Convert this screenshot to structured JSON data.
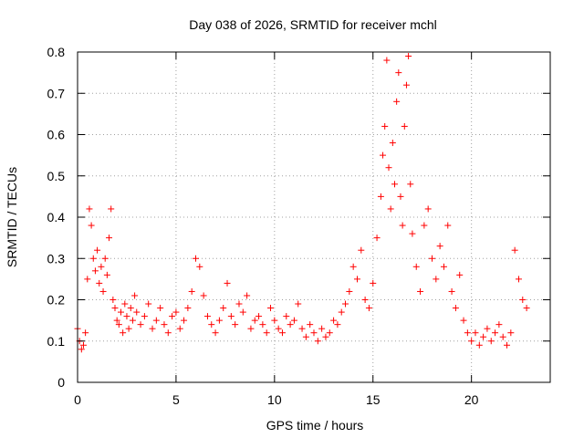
{
  "chart_data": {
    "type": "scatter",
    "title": "Day 038 of 2026, SRMTID for receiver mchl",
    "xlabel": "GPS time / hours",
    "ylabel": "SRMTID / TECUs",
    "xlim": [
      0,
      24
    ],
    "ylim": [
      0,
      0.8
    ],
    "xticks": [
      0,
      5,
      10,
      15,
      20
    ],
    "yticks": [
      0,
      0.1,
      0.2,
      0.3,
      0.4,
      0.5,
      0.6,
      0.7,
      0.8
    ],
    "grid": true,
    "marker": "+",
    "series": [
      {
        "name": "SRMTID",
        "color": "#ff0000",
        "x": [
          0.0,
          0.1,
          0.2,
          0.3,
          0.4,
          0.5,
          0.6,
          0.7,
          0.8,
          0.9,
          1.0,
          1.1,
          1.2,
          1.3,
          1.4,
          1.5,
          1.6,
          1.7,
          1.8,
          1.9,
          2.0,
          2.1,
          2.2,
          2.3,
          2.4,
          2.5,
          2.6,
          2.7,
          2.8,
          2.9,
          3.0,
          3.2,
          3.4,
          3.6,
          3.8,
          4.0,
          4.2,
          4.4,
          4.6,
          4.8,
          5.0,
          5.2,
          5.4,
          5.6,
          5.8,
          6.0,
          6.2,
          6.4,
          6.6,
          6.8,
          7.0,
          7.2,
          7.4,
          7.6,
          7.8,
          8.0,
          8.2,
          8.4,
          8.6,
          8.8,
          9.0,
          9.2,
          9.4,
          9.6,
          9.8,
          10.0,
          10.2,
          10.4,
          10.6,
          10.8,
          11.0,
          11.2,
          11.4,
          11.6,
          11.8,
          12.0,
          12.2,
          12.4,
          12.6,
          12.8,
          13.0,
          13.2,
          13.4,
          13.6,
          13.8,
          14.0,
          14.2,
          14.4,
          14.6,
          14.8,
          15.0,
          15.2,
          15.4,
          15.5,
          15.6,
          15.7,
          15.8,
          15.9,
          16.0,
          16.1,
          16.2,
          16.3,
          16.4,
          16.5,
          16.6,
          16.7,
          16.8,
          16.9,
          17.0,
          17.2,
          17.4,
          17.6,
          17.8,
          18.0,
          18.2,
          18.4,
          18.6,
          18.8,
          19.0,
          19.2,
          19.4,
          19.6,
          19.8,
          20.0,
          20.2,
          20.4,
          20.6,
          20.8,
          21.0,
          21.2,
          21.4,
          21.6,
          21.8,
          22.0,
          22.2,
          22.4,
          22.6,
          22.8
        ],
        "y": [
          0.13,
          0.1,
          0.08,
          0.09,
          0.12,
          0.25,
          0.42,
          0.38,
          0.3,
          0.27,
          0.32,
          0.24,
          0.28,
          0.22,
          0.3,
          0.26,
          0.35,
          0.42,
          0.2,
          0.18,
          0.15,
          0.14,
          0.17,
          0.12,
          0.19,
          0.16,
          0.13,
          0.18,
          0.15,
          0.21,
          0.17,
          0.14,
          0.16,
          0.19,
          0.13,
          0.15,
          0.18,
          0.14,
          0.12,
          0.16,
          0.17,
          0.13,
          0.15,
          0.18,
          0.22,
          0.3,
          0.28,
          0.21,
          0.16,
          0.14,
          0.12,
          0.15,
          0.18,
          0.24,
          0.16,
          0.14,
          0.19,
          0.17,
          0.21,
          0.13,
          0.15,
          0.16,
          0.14,
          0.12,
          0.18,
          0.15,
          0.13,
          0.12,
          0.16,
          0.14,
          0.15,
          0.19,
          0.13,
          0.11,
          0.14,
          0.12,
          0.1,
          0.13,
          0.11,
          0.12,
          0.15,
          0.14,
          0.17,
          0.19,
          0.22,
          0.28,
          0.25,
          0.32,
          0.2,
          0.18,
          0.24,
          0.35,
          0.45,
          0.55,
          0.62,
          0.78,
          0.52,
          0.42,
          0.58,
          0.48,
          0.68,
          0.75,
          0.45,
          0.38,
          0.62,
          0.72,
          0.79,
          0.48,
          0.36,
          0.28,
          0.22,
          0.38,
          0.42,
          0.3,
          0.25,
          0.33,
          0.28,
          0.38,
          0.22,
          0.18,
          0.26,
          0.15,
          0.12,
          0.1,
          0.12,
          0.09,
          0.11,
          0.13,
          0.1,
          0.12,
          0.14,
          0.11,
          0.09,
          0.12,
          0.32,
          0.25,
          0.2,
          0.18
        ]
      }
    ]
  }
}
